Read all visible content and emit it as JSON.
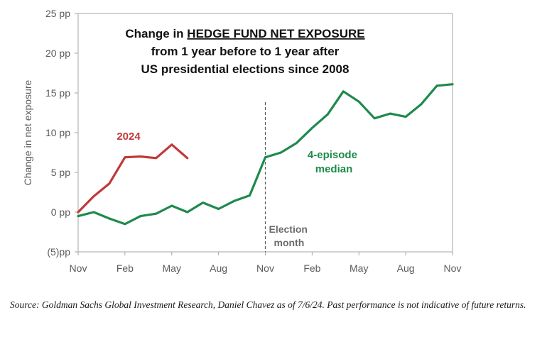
{
  "chart_data": {
    "type": "line",
    "title": {
      "prefix": "Change in ",
      "underlined": "HEDGE FUND NET EXPOSURE",
      "line2": "from 1 year before to 1 year after",
      "line3": "US presidential elections since 2008"
    },
    "ylabel": "Change in net exposure",
    "ylim": [
      -5,
      25
    ],
    "yticks": [
      {
        "value": 25,
        "label": "25 pp"
      },
      {
        "value": 20,
        "label": "20 pp"
      },
      {
        "value": 15,
        "label": "15 pp"
      },
      {
        "value": 10,
        "label": "10 pp"
      },
      {
        "value": 5,
        "label": "5 pp"
      },
      {
        "value": 0,
        "label": "0 pp"
      },
      {
        "value": -5,
        "label": "(5)pp"
      }
    ],
    "xlim": [
      0,
      24
    ],
    "xticks": [
      {
        "value": 0,
        "label": "Nov"
      },
      {
        "value": 3,
        "label": "Feb"
      },
      {
        "value": 6,
        "label": "May"
      },
      {
        "value": 9,
        "label": "Aug"
      },
      {
        "value": 12,
        "label": "Nov"
      },
      {
        "value": 15,
        "label": "Feb"
      },
      {
        "value": 18,
        "label": "May"
      },
      {
        "value": 21,
        "label": "Aug"
      },
      {
        "value": 24,
        "label": "Nov"
      }
    ],
    "series": [
      {
        "name": "4-episode median",
        "color": "#1e8a4c",
        "x": [
          0,
          1,
          2,
          3,
          4,
          5,
          6,
          7,
          8,
          9,
          10,
          11,
          12,
          13,
          14,
          15,
          16,
          17,
          18,
          19,
          20,
          21,
          22,
          23,
          24
        ],
        "y": [
          -0.5,
          0,
          -0.8,
          -1.5,
          -0.5,
          -0.2,
          0.8,
          0,
          1.2,
          0.4,
          1.4,
          2.1,
          6.9,
          7.5,
          8.7,
          10.6,
          12.3,
          15.2,
          13.9,
          11.8,
          12.4,
          12.0,
          13.6,
          15.9,
          16.1
        ]
      },
      {
        "name": "2024",
        "color": "#c0393b",
        "x": [
          0,
          1,
          2,
          3,
          4,
          5,
          6,
          7
        ],
        "y": [
          0,
          2.0,
          3.6,
          6.9,
          7.0,
          6.8,
          8.5,
          6.8
        ]
      }
    ],
    "annotations": [
      {
        "text": "Election",
        "line2": "month",
        "x": 12
      }
    ],
    "grid": false,
    "legend": "inline labels"
  },
  "source": "Source: Goldman Sachs Global Investment Research, Daniel Chavez  as of 7/6/24. Past performance is not indicative of future returns."
}
